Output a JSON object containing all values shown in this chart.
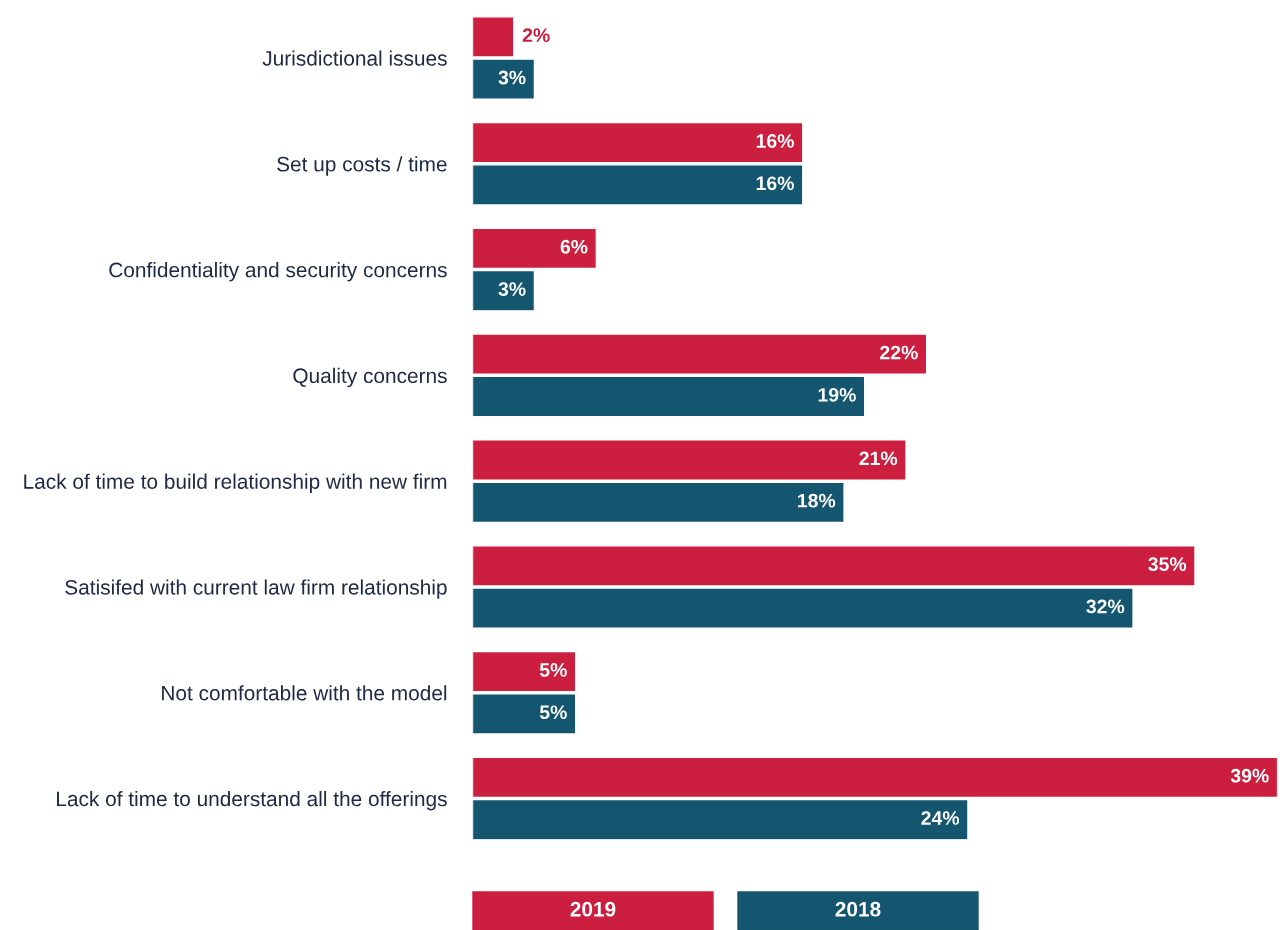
{
  "chart_data": {
    "type": "bar",
    "orientation": "horizontal",
    "categories": [
      "Jurisdictional issues",
      "Set up costs / time",
      "Confidentiality and security concerns",
      "Quality concerns",
      "Lack of time to build relationship with new firm",
      "Satisifed with current law firm relationship",
      "Not comfortable with the model",
      "Lack of time to understand all the offerings"
    ],
    "series": [
      {
        "name": "2019",
        "color": "#cc1f3f",
        "values": [
          2,
          16,
          6,
          22,
          21,
          35,
          5,
          39
        ],
        "value_labels": [
          "2%",
          "16%",
          "6%",
          "22%",
          "21%",
          "35%",
          "5%",
          "39%"
        ]
      },
      {
        "name": "2018",
        "color": "#14566f",
        "values": [
          3,
          16,
          3,
          19,
          18,
          32,
          5,
          24
        ],
        "value_labels": [
          "3%",
          "16%",
          "3%",
          "19%",
          "18%",
          "32%",
          "5%",
          "24%"
        ]
      }
    ],
    "legend": "bottom",
    "grid": false
  }
}
